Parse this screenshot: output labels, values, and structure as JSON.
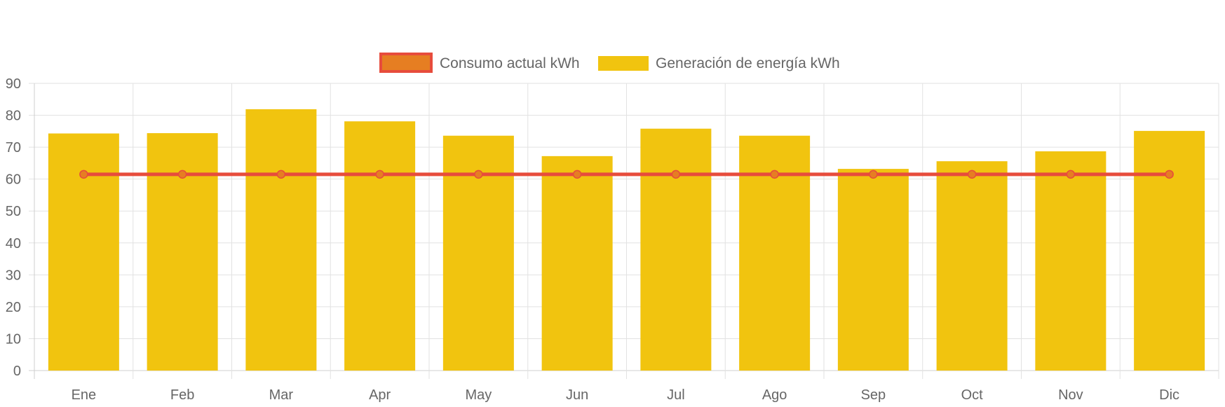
{
  "chart_data": {
    "type": "bar",
    "categories": [
      "Ene",
      "Feb",
      "Mar",
      "Apr",
      "May",
      "Jun",
      "Jul",
      "Ago",
      "Sep",
      "Oct",
      "Nov",
      "Dic"
    ],
    "series": [
      {
        "name": "Consumo actual kWh",
        "type": "line",
        "values": [
          61.5,
          61.5,
          61.5,
          61.5,
          61.5,
          61.5,
          61.5,
          61.5,
          61.5,
          61.5,
          61.5,
          61.5
        ],
        "color": "#e74c3c",
        "point_color": "#e67e22"
      },
      {
        "name": "Generación de energía kWh",
        "type": "bar",
        "values": [
          74.3,
          74.4,
          81.9,
          78.1,
          73.6,
          67.2,
          75.8,
          73.6,
          63.2,
          65.6,
          68.7,
          75.1
        ],
        "color": "#f1c40f"
      }
    ],
    "yticks": [
      0,
      10,
      20,
      30,
      40,
      50,
      60,
      70,
      80,
      90
    ],
    "ylim": [
      0,
      90
    ],
    "grid": true,
    "legend_position": "top-center",
    "title": "",
    "xlabel": "",
    "ylabel": ""
  }
}
